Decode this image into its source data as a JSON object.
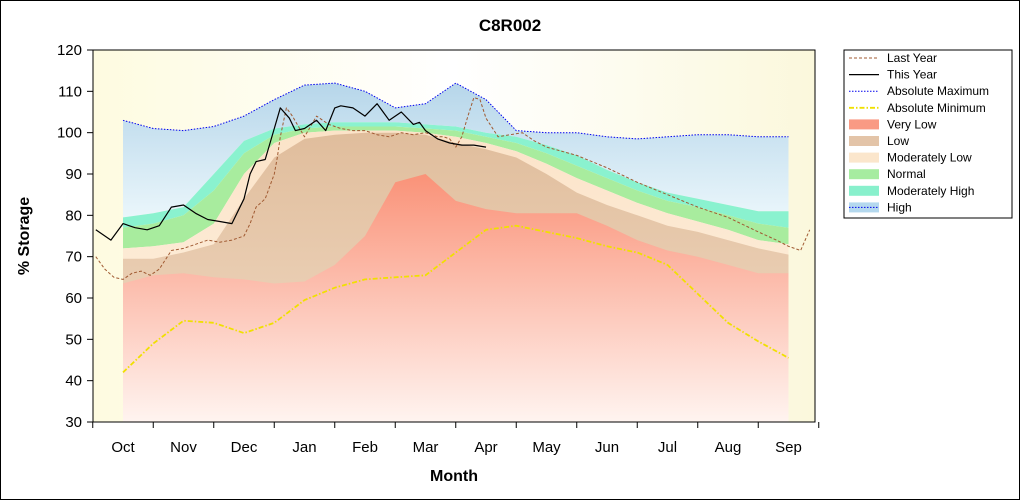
{
  "chart_data": {
    "type": "area",
    "title": "C8R002",
    "xlabel": "Month",
    "ylabel": "% Storage",
    "ylim": [
      30,
      120
    ],
    "yticks": [
      30,
      40,
      50,
      60,
      70,
      80,
      90,
      100,
      110,
      120
    ],
    "categories": [
      "Oct",
      "Nov",
      "Dec",
      "Jan",
      "Feb",
      "Mar",
      "Apr",
      "May",
      "Jun",
      "Jul",
      "Aug",
      "Sep"
    ],
    "grid": false,
    "legend": "right",
    "band_x": [
      0,
      0.5,
      1,
      1.5,
      2,
      2.5,
      3,
      3.5,
      4,
      4.5,
      5,
      5.5,
      6,
      6.5,
      7,
      7.5,
      8,
      8.5,
      9,
      9.5,
      10,
      10.5,
      11
    ],
    "bands": [
      {
        "name": "High",
        "color": "#b4d8ee",
        "upper": [
          103,
          101,
          100.5,
          101.5,
          104,
          108,
          111.5,
          112,
          110,
          106,
          107,
          112,
          108,
          100.5,
          100,
          100,
          99,
          98.5,
          99,
          99.5,
          99.5,
          99,
          99
        ],
        "lower": [
          79.5,
          80.5,
          82,
          90,
          98,
          101,
          102,
          102.5,
          102.5,
          102.5,
          102,
          101.5,
          100,
          99,
          97,
          94.5,
          91,
          88,
          85.5,
          84,
          82.5,
          81,
          81
        ]
      },
      {
        "name": "Moderately High",
        "color": "#88f0cc",
        "upper": [
          79.5,
          80.5,
          82,
          90,
          98,
          101,
          102,
          102.5,
          102.5,
          102.5,
          102,
          101.5,
          100,
          99,
          97,
          94.5,
          91,
          88,
          85.5,
          84,
          82.5,
          81,
          81
        ],
        "lower": [
          77,
          78,
          80,
          86,
          95,
          99.5,
          101,
          101.5,
          101.5,
          101.5,
          101,
          100.5,
          99,
          97.5,
          95,
          92,
          89,
          86,
          83.5,
          82,
          80,
          78,
          77
        ]
      },
      {
        "name": "Normal",
        "color": "#a6eca0",
        "upper": [
          77,
          78,
          80,
          86,
          95,
          99.5,
          101,
          101.5,
          101.5,
          101.5,
          101,
          100.5,
          99,
          97.5,
          95,
          92,
          89,
          86,
          83.5,
          82,
          80,
          78,
          77
        ],
        "lower": [
          72,
          72.5,
          73.5,
          78,
          90,
          97.5,
          100,
          100.5,
          100.5,
          100.5,
          100,
          99,
          97.5,
          95.5,
          92.5,
          89,
          86,
          83,
          80.5,
          78.5,
          76.5,
          74,
          73
        ]
      },
      {
        "name": "Moderately Low",
        "color": "#fbe6cc",
        "upper": [
          72,
          72.5,
          73.5,
          78,
          90,
          97.5,
          100,
          100.5,
          100.5,
          100.5,
          100,
          99,
          97.5,
          95.5,
          92.5,
          89,
          86,
          83,
          80.5,
          78.5,
          76.5,
          74,
          73
        ]
      },
      {
        "name": "Low",
        "color": "#e3c4a8",
        "upper": [
          69.5,
          69.5,
          71,
          73,
          84,
          94,
          98.5,
          99.5,
          100,
          100,
          99.5,
          97.5,
          96,
          94,
          90,
          85.5,
          82.5,
          80,
          77.5,
          76,
          74,
          72,
          70.5
        ]
      },
      {
        "name": "Very Low",
        "color": "#f99a84",
        "upper": [
          63.5,
          65.5,
          66,
          65,
          64.5,
          63.5,
          64,
          68,
          75,
          88,
          90,
          83.5,
          81.5,
          80.5,
          80.5,
          80.5,
          77.5,
          74,
          71.5,
          70,
          68,
          66,
          66
        ]
      }
    ],
    "series": [
      {
        "name": "Last Year",
        "color": "#a05a32",
        "style": "dash",
        "x": [
          -0.45,
          -0.3,
          -0.15,
          0,
          0.15,
          0.3,
          0.45,
          0.6,
          0.8,
          1,
          1.2,
          1.4,
          1.6,
          1.8,
          2,
          2.1,
          2.2,
          2.35,
          2.5,
          2.55,
          2.6,
          2.7,
          2.8,
          3,
          3.2,
          3.4,
          3.6,
          3.8,
          4,
          4.2,
          4.4,
          4.6,
          4.8,
          5,
          5.2,
          5.3,
          5.4,
          5.5,
          5.6,
          5.7,
          5.8,
          5.9,
          6,
          6.2,
          6.4,
          6.6,
          6.8,
          7,
          7.5,
          8,
          8.5,
          9,
          9.5,
          10,
          10.5,
          10.8,
          11,
          11.2,
          11.35
        ],
        "values": [
          70,
          67,
          65,
          64.5,
          66,
          66.5,
          65.5,
          67,
          71.5,
          72,
          73,
          74,
          73.5,
          74,
          75,
          78,
          82,
          84,
          90,
          94,
          99,
          106,
          104,
          99,
          104,
          102,
          101,
          100.5,
          100.5,
          99.5,
          99,
          100,
          99.5,
          100,
          99,
          99,
          98.5,
          96.5,
          99,
          104,
          108.5,
          108,
          103.5,
          99,
          99.5,
          100,
          98,
          96.5,
          94.5,
          91.5,
          88,
          85,
          82,
          79.5,
          76,
          74,
          72.5,
          71.5,
          76.5
        ]
      },
      {
        "name": "This Year",
        "color": "#000000",
        "style": "solid",
        "x": [
          -0.45,
          -0.2,
          0,
          0.2,
          0.4,
          0.6,
          0.8,
          1,
          1.2,
          1.4,
          1.6,
          1.8,
          2,
          2.1,
          2.2,
          2.35,
          2.5,
          2.6,
          2.75,
          2.85,
          3,
          3.2,
          3.35,
          3.5,
          3.6,
          3.8,
          4,
          4.2,
          4.4,
          4.6,
          4.8,
          4.9,
          5,
          5.2,
          5.4,
          5.6,
          5.8,
          6
        ],
        "values": [
          76.5,
          74,
          78,
          77,
          76.5,
          77.5,
          82,
          82.5,
          80.5,
          79,
          78.5,
          78,
          84,
          90,
          93,
          93.5,
          101,
          106,
          103.5,
          100.5,
          101,
          103,
          100.5,
          106,
          106.5,
          106,
          104,
          107,
          103,
          105,
          102,
          102.5,
          100.5,
          98.5,
          97.5,
          97,
          97,
          96.5
        ]
      },
      {
        "name": "Absolute Maximum",
        "color": "#0000ee",
        "style": "dot",
        "x": [
          0,
          0.5,
          1,
          1.5,
          2,
          2.5,
          3,
          3.5,
          4,
          4.5,
          5,
          5.5,
          6,
          6.5,
          7,
          7.5,
          8,
          8.5,
          9,
          9.5,
          10,
          10.5,
          11
        ],
        "values": [
          103,
          101,
          100.5,
          101.5,
          104,
          108,
          111.5,
          112,
          110,
          106,
          107,
          112,
          108,
          100.5,
          100,
          100,
          99,
          98.5,
          99,
          99.5,
          99.5,
          99,
          99
        ]
      },
      {
        "name": "Absolute Minimum",
        "color": "#f0e000",
        "style": "dashdot",
        "x": [
          0,
          0.5,
          1,
          1.5,
          2,
          2.5,
          3,
          3.5,
          4,
          4.5,
          5,
          5.5,
          6,
          6.5,
          7,
          7.5,
          8,
          8.5,
          9,
          9.5,
          10,
          10.5,
          11
        ],
        "values": [
          42,
          49,
          54.5,
          54,
          51.5,
          54,
          59.5,
          62.5,
          64.5,
          65,
          65.5,
          71,
          76.5,
          77.5,
          76,
          74.5,
          72.5,
          71,
          68,
          61,
          54,
          49.5,
          45.5
        ]
      }
    ],
    "legend_order": [
      "Last Year",
      "This Year",
      "Absolute Maximum",
      "Absolute Minimum",
      "Very Low",
      "Low",
      "Moderately Low",
      "Normal",
      "Moderately High",
      "High"
    ]
  }
}
